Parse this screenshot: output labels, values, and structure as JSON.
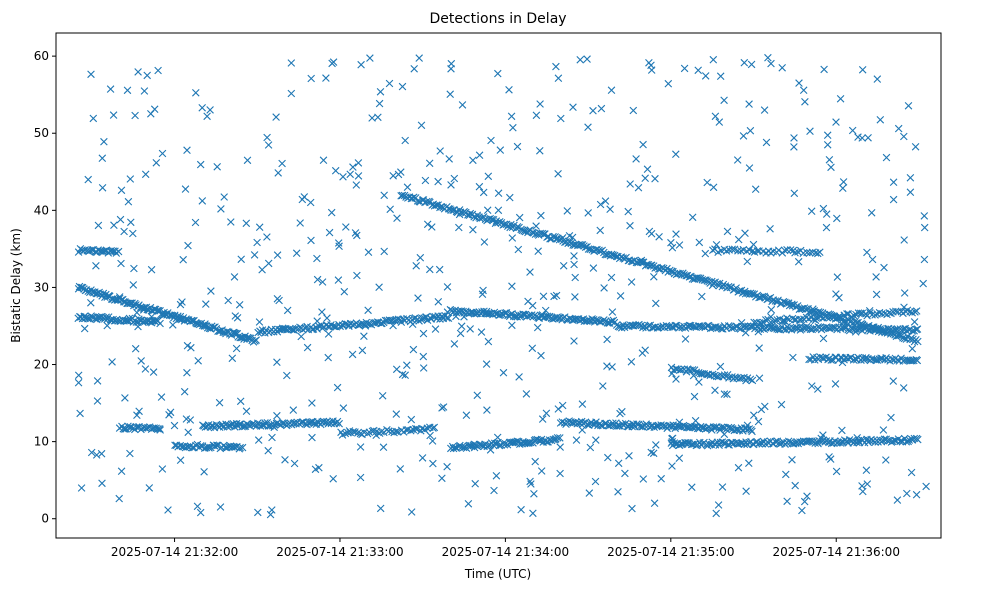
{
  "chart_data": {
    "type": "scatter",
    "title": "Detections in Delay",
    "xlabel": "Time (UTC)",
    "ylabel": "Bistatic Delay (km)",
    "marker": "x",
    "color": "#1f77b4",
    "grid": false,
    "legend": "none",
    "xlim": [
      "2025-07-14 21:31:17",
      "2025-07-14 21:36:38"
    ],
    "ylim": [
      -2.5,
      63
    ],
    "x_ticks": [
      "2025-07-14 21:32:00",
      "2025-07-14 21:33:00",
      "2025-07-14 21:34:00",
      "2025-07-14 21:35:00",
      "2025-07-14 21:36:00"
    ],
    "y_ticks": [
      0,
      10,
      20,
      30,
      40,
      50,
      60
    ],
    "track_segments": [
      {
        "start": [
          "2025-07-14 21:31:25",
          30.0
        ],
        "end": [
          "2025-07-14 21:32:30",
          23.0
        ],
        "count": 130
      },
      {
        "start": [
          "2025-07-14 21:33:22",
          42.0
        ],
        "end": [
          "2025-07-14 21:36:30",
          23.0
        ],
        "count": 320
      },
      {
        "start": [
          "2025-07-14 21:31:25",
          26.2
        ],
        "end": [
          "2025-07-14 21:31:55",
          25.5
        ],
        "count": 60
      },
      {
        "start": [
          "2025-07-14 21:32:30",
          24.2
        ],
        "end": [
          "2025-07-14 21:33:40",
          26.2
        ],
        "count": 110
      },
      {
        "start": [
          "2025-07-14 21:33:40",
          27.0
        ],
        "end": [
          "2025-07-14 21:34:40",
          25.5
        ],
        "count": 110
      },
      {
        "start": [
          "2025-07-14 21:34:40",
          25.0
        ],
        "end": [
          "2025-07-14 21:36:30",
          24.5
        ],
        "count": 170
      },
      {
        "start": [
          "2025-07-14 21:35:30",
          25.5
        ],
        "end": [
          "2025-07-14 21:36:30",
          27.0
        ],
        "count": 70
      },
      {
        "start": [
          "2025-07-14 21:32:10",
          12.0
        ],
        "end": [
          "2025-07-14 21:33:00",
          12.5
        ],
        "count": 90
      },
      {
        "start": [
          "2025-07-14 21:32:00",
          9.5
        ],
        "end": [
          "2025-07-14 21:32:25",
          9.2
        ],
        "count": 40
      },
      {
        "start": [
          "2025-07-14 21:33:00",
          11.0
        ],
        "end": [
          "2025-07-14 21:33:35",
          11.7
        ],
        "count": 40
      },
      {
        "start": [
          "2025-07-14 21:33:40",
          9.2
        ],
        "end": [
          "2025-07-14 21:34:20",
          10.3
        ],
        "count": 70
      },
      {
        "start": [
          "2025-07-14 21:34:20",
          12.5
        ],
        "end": [
          "2025-07-14 21:35:30",
          11.5
        ],
        "count": 120
      },
      {
        "start": [
          "2025-07-14 21:35:00",
          9.6
        ],
        "end": [
          "2025-07-14 21:36:30",
          10.2
        ],
        "count": 150
      },
      {
        "start": [
          "2025-07-14 21:35:00",
          19.5
        ],
        "end": [
          "2025-07-14 21:35:30",
          18.0
        ],
        "count": 40
      },
      {
        "start": [
          "2025-07-14 21:35:50",
          20.8
        ],
        "end": [
          "2025-07-14 21:36:30",
          20.6
        ],
        "count": 60
      },
      {
        "start": [
          "2025-07-14 21:31:25",
          34.8
        ],
        "end": [
          "2025-07-14 21:31:40",
          34.6
        ],
        "count": 25
      },
      {
        "start": [
          "2025-07-14 21:35:15",
          34.8
        ],
        "end": [
          "2025-07-14 21:35:55",
          34.6
        ],
        "count": 40
      },
      {
        "start": [
          "2025-07-14 21:31:40",
          11.8
        ],
        "end": [
          "2025-07-14 21:31:55",
          11.8
        ],
        "count": 25
      }
    ],
    "scatter_field": {
      "x_range": [
        "2025-07-14 21:31:25",
        "2025-07-14 21:36:33"
      ],
      "y_range": [
        0.5,
        59.8
      ],
      "count": 620
    }
  }
}
